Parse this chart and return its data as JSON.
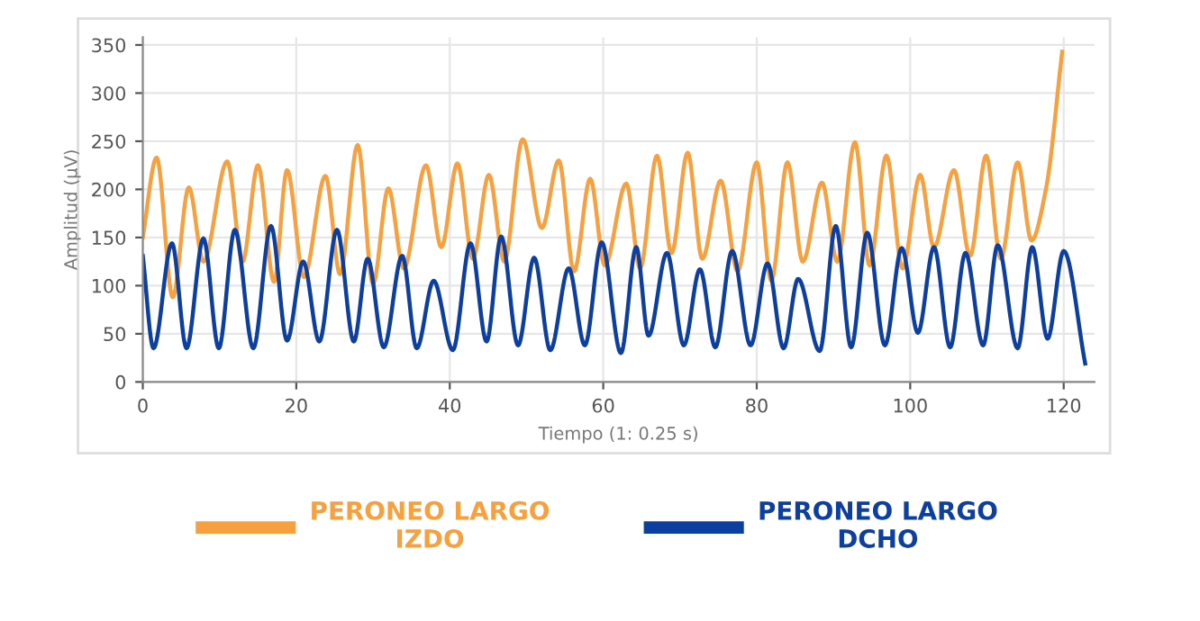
{
  "chart_data": {
    "type": "line",
    "xlabel": "Tiempo (1: 0.25 s)",
    "ylabel": "Amplitud (μV)",
    "xlim": [
      0,
      124
    ],
    "ylim": [
      0,
      358
    ],
    "xticks": [
      0,
      20,
      40,
      60,
      80,
      100,
      120
    ],
    "yticks": [
      0,
      50,
      100,
      150,
      200,
      250,
      300,
      350
    ],
    "grid": true,
    "legend": "bottom",
    "line_style": "solid",
    "series": [
      {
        "name": "PERONEO LARGO\nIZDO",
        "color": "#f7a040",
        "x": [
          0,
          1.8,
          3.9,
          6,
          7.9,
          11,
          13,
          15,
          17.1,
          18.8,
          21,
          23.8,
          25.7,
          28,
          30,
          32,
          34,
          36.9,
          38.9,
          41,
          43,
          45.1,
          47.1,
          49.5,
          52,
          54.2,
          56.2,
          58.3,
          60.2,
          63,
          64.8,
          67,
          68.9,
          71,
          72.9,
          75.3,
          77.5,
          80,
          81.9,
          84,
          86,
          88.5,
          90.5,
          92.8,
          94.7,
          96.9,
          99,
          101.3,
          103.1,
          105.7,
          107.8,
          109.9,
          111.8,
          114,
          115.8,
          117.7,
          119.8
        ],
        "values": [
          150,
          233,
          88,
          202,
          125,
          229,
          125,
          225,
          104,
          220,
          109,
          214,
          112,
          246,
          102,
          201,
          118,
          225,
          140,
          227,
          128,
          215,
          125,
          252,
          160,
          230,
          115,
          211,
          121,
          206,
          118,
          235,
          134,
          238,
          128,
          209,
          115,
          228,
          105,
          228,
          125,
          207,
          125,
          249,
          121,
          235,
          118,
          215,
          140,
          220,
          131,
          235,
          128,
          228,
          147,
          201,
          343
        ]
      },
      {
        "name": "PERONEO LARGO\nDCHO",
        "color": "#0d3fa0",
        "x": [
          0,
          1.4,
          3.8,
          5.7,
          7.9,
          9.9,
          12,
          14.4,
          16.7,
          18.8,
          20.9,
          23,
          25.3,
          27.5,
          29.3,
          31.4,
          33.8,
          35.7,
          37.9,
          40.4,
          42.7,
          44.8,
          46.7,
          48.9,
          51,
          53.1,
          55.5,
          57.6,
          59.8,
          62.3,
          64.3,
          65.9,
          68.3,
          70.5,
          72.6,
          74.6,
          76.8,
          79.2,
          81.4,
          83.5,
          85.4,
          88.2,
          90.3,
          92.3,
          94.4,
          96.7,
          98.9,
          101,
          103.1,
          105.2,
          107.2,
          109.5,
          111.4,
          114,
          115.9,
          117.9,
          120,
          122.8
        ],
        "values": [
          131,
          35,
          144,
          35,
          149,
          35,
          158,
          35,
          162,
          43,
          125,
          42,
          158,
          42,
          128,
          36,
          131,
          35,
          105,
          33,
          144,
          42,
          151,
          38,
          129,
          33,
          118,
          38,
          145,
          30,
          140,
          48,
          134,
          38,
          117,
          36,
          136,
          38,
          123,
          35,
          107,
          32,
          162,
          36,
          155,
          38,
          139,
          51,
          140,
          36,
          134,
          38,
          142,
          35,
          140,
          45,
          136,
          19
        ]
      }
    ]
  }
}
